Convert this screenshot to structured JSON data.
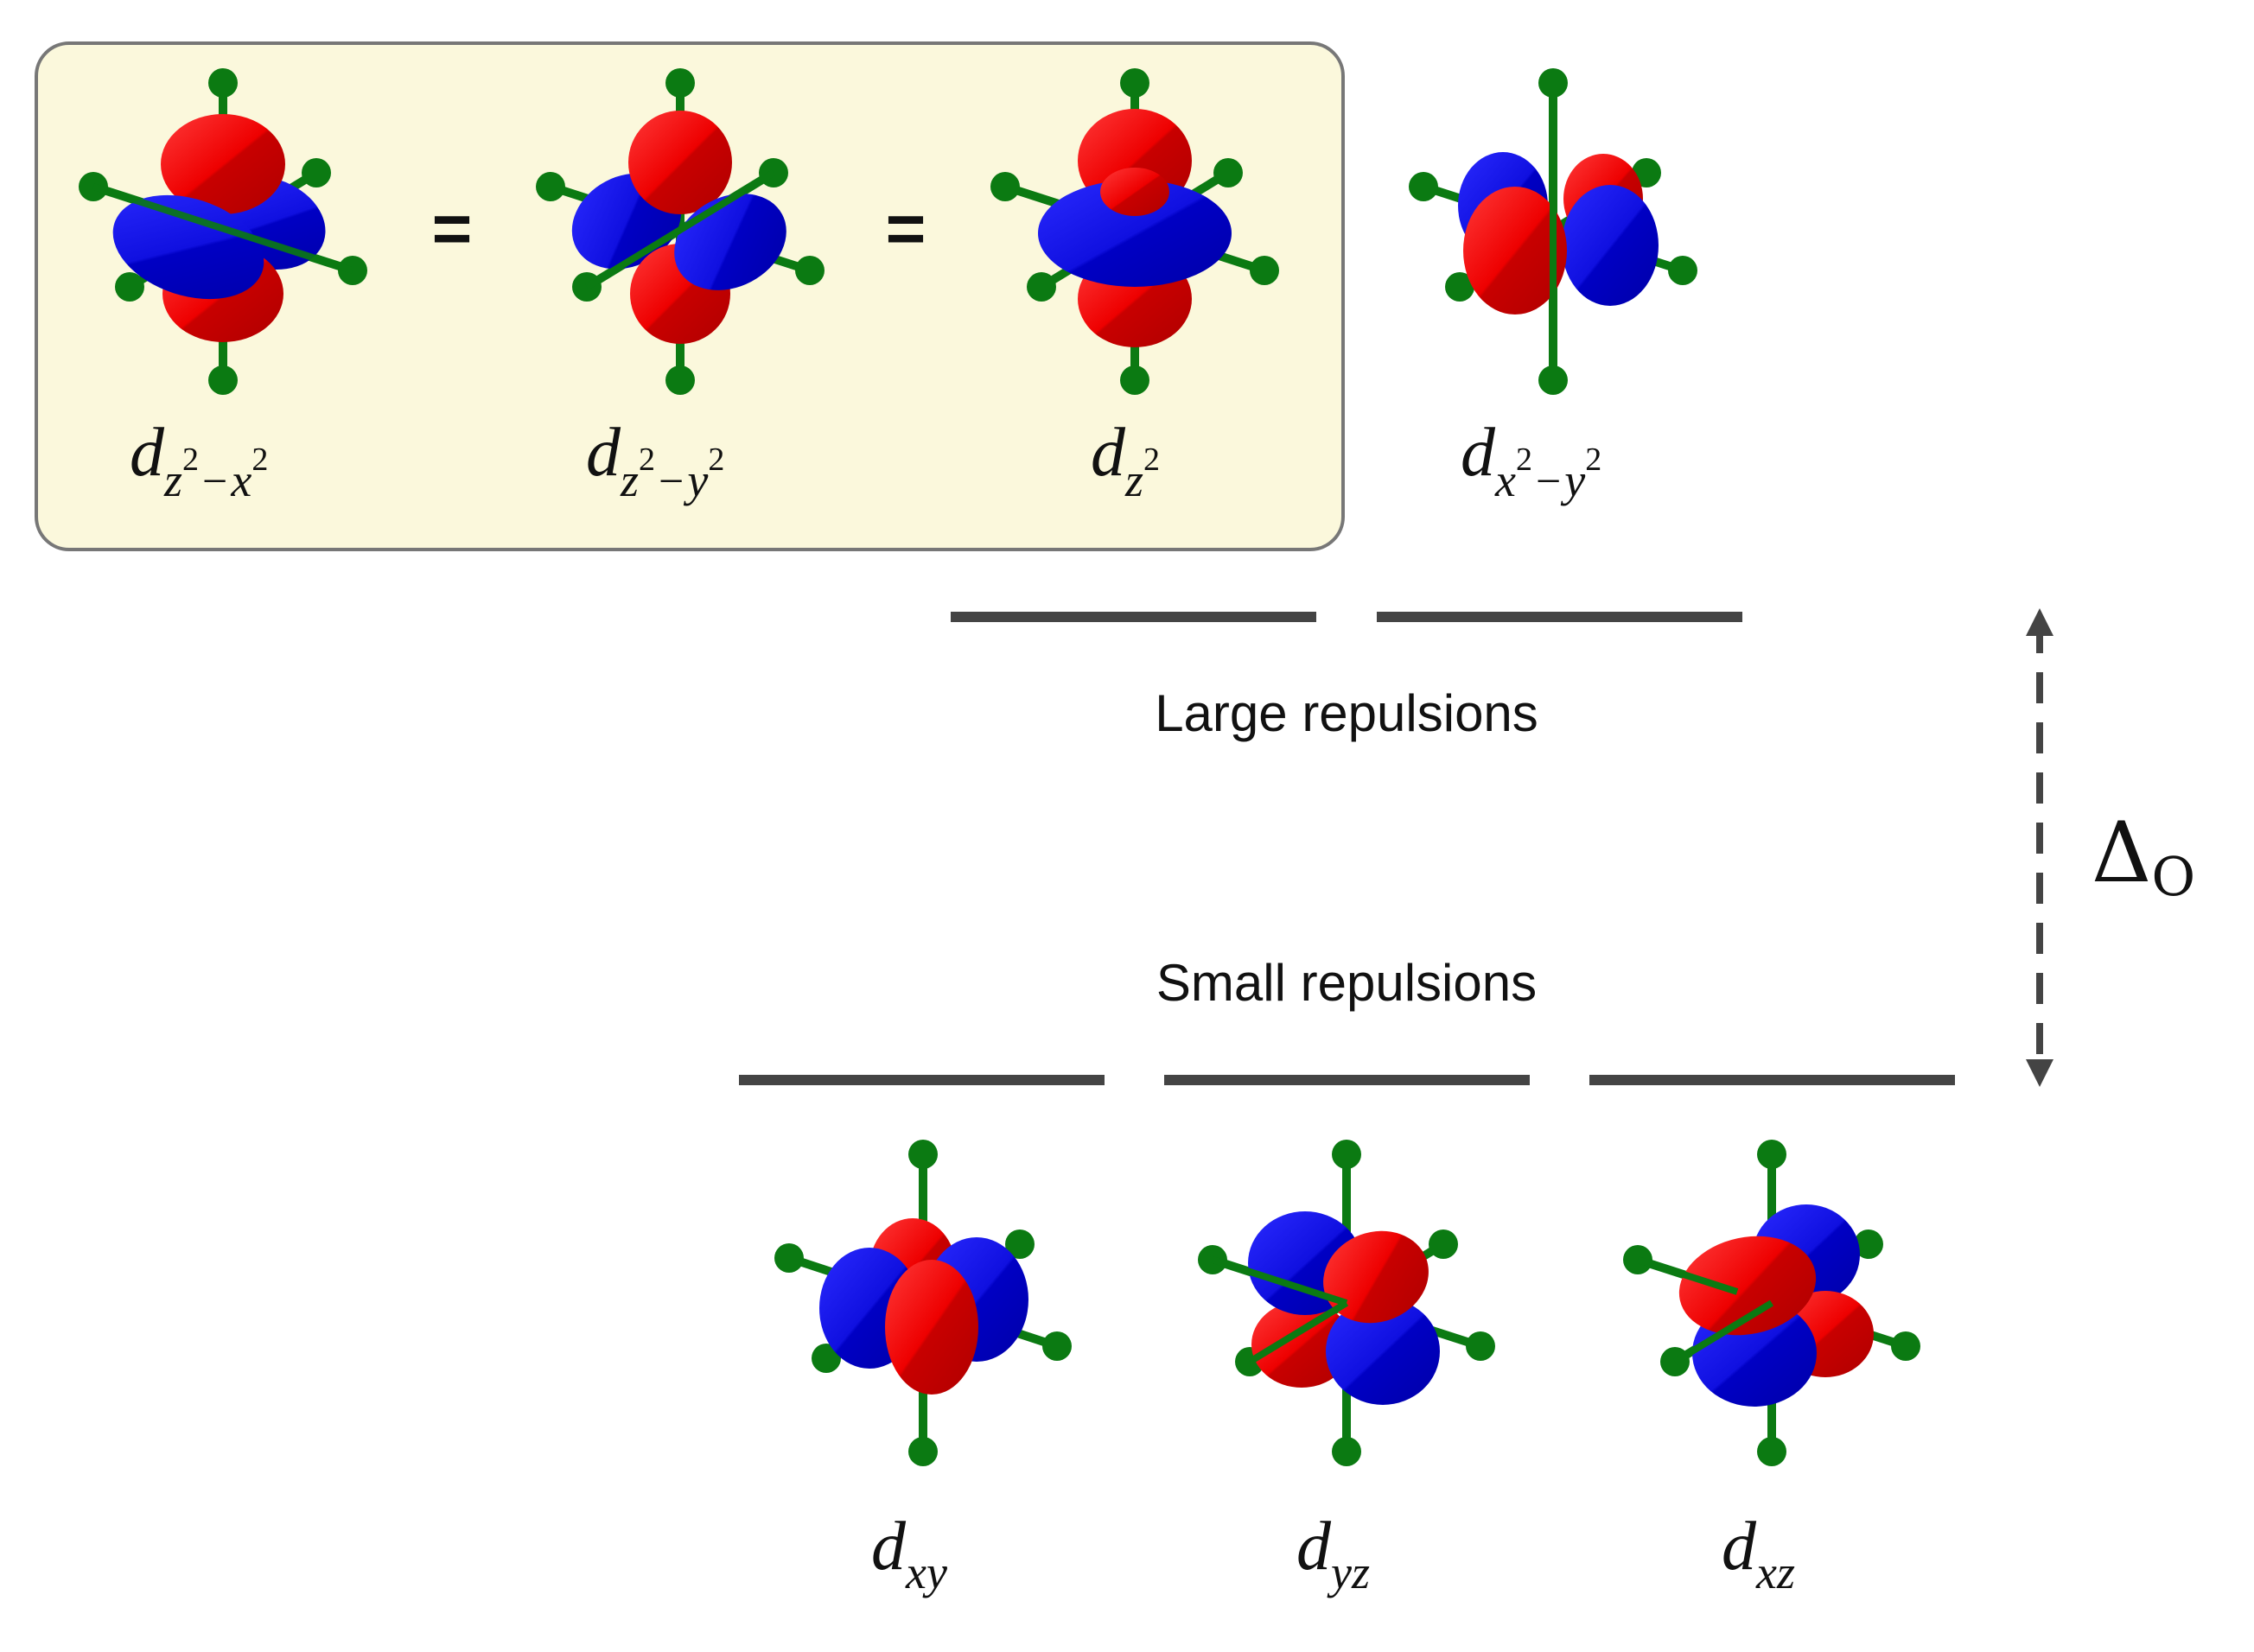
{
  "colors": {
    "positive_lobe": "#ee0000",
    "negative_lobe": "#1010e0",
    "ligand": "#0b7a12",
    "level_line": "#444444",
    "highlight_box_fill": "#fbf8dc",
    "highlight_box_border": "#777777"
  },
  "equivalence_box": {
    "equals_1": "=",
    "equals_2": "="
  },
  "orbitals": {
    "dz2_x2": {
      "main": "d",
      "sub": "z",
      "sup1": "2",
      "op": "−",
      "var2": "x",
      "sup2": "2"
    },
    "dz2_y2": {
      "main": "d",
      "sub": "z",
      "sup1": "2",
      "op": "−",
      "var2": "y",
      "sup2": "2"
    },
    "dz2": {
      "main": "d",
      "sub": "z",
      "sup1": "2"
    },
    "dx2_y2": {
      "main": "d",
      "sub": "x",
      "sup1": "2",
      "op": "−",
      "var2": "y",
      "sup2": "2"
    },
    "dxy": {
      "main": "d",
      "sub": "xy"
    },
    "dyz": {
      "main": "d",
      "sub": "yz"
    },
    "dxz": {
      "main": "d",
      "sub": "xz"
    }
  },
  "labels": {
    "large": "Large repulsions",
    "small": "Small repulsions",
    "gap_symbol": "Δ",
    "gap_subscript": "O"
  }
}
